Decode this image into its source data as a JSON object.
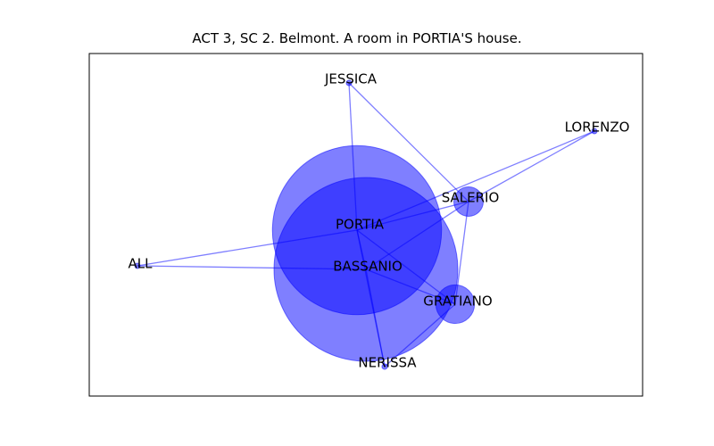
{
  "title": "ACT 3, SC 2. Belmont. A room in PORTIA'S house.",
  "colors": {
    "node": "#0000ff",
    "edge": "#0000ff",
    "frame": "#000000"
  },
  "nodes": [
    {
      "id": "jessica",
      "label": "JESSICA",
      "relative_size": 0.03
    },
    {
      "id": "lorenzo",
      "label": "LORENZO",
      "relative_size": 0.02
    },
    {
      "id": "salerio",
      "label": "SALERIO",
      "relative_size": 0.16
    },
    {
      "id": "portia",
      "label": "PORTIA",
      "relative_size": 0.92
    },
    {
      "id": "all",
      "label": "ALL",
      "relative_size": 0.01
    },
    {
      "id": "bassanio",
      "label": "BASSANIO",
      "relative_size": 1.0
    },
    {
      "id": "gratiano",
      "label": "GRATIANO",
      "relative_size": 0.21
    },
    {
      "id": "nerissa",
      "label": "NERISSA",
      "relative_size": 0.03
    }
  ],
  "edges": [
    [
      "jessica",
      "portia"
    ],
    [
      "jessica",
      "salerio"
    ],
    [
      "lorenzo",
      "salerio"
    ],
    [
      "lorenzo",
      "portia"
    ],
    [
      "salerio",
      "portia"
    ],
    [
      "salerio",
      "bassanio"
    ],
    [
      "salerio",
      "gratiano"
    ],
    [
      "portia",
      "all"
    ],
    [
      "portia",
      "bassanio"
    ],
    [
      "portia",
      "gratiano"
    ],
    [
      "portia",
      "nerissa"
    ],
    [
      "all",
      "bassanio"
    ],
    [
      "bassanio",
      "gratiano"
    ],
    [
      "bassanio",
      "nerissa"
    ],
    [
      "gratiano",
      "nerissa"
    ]
  ]
}
